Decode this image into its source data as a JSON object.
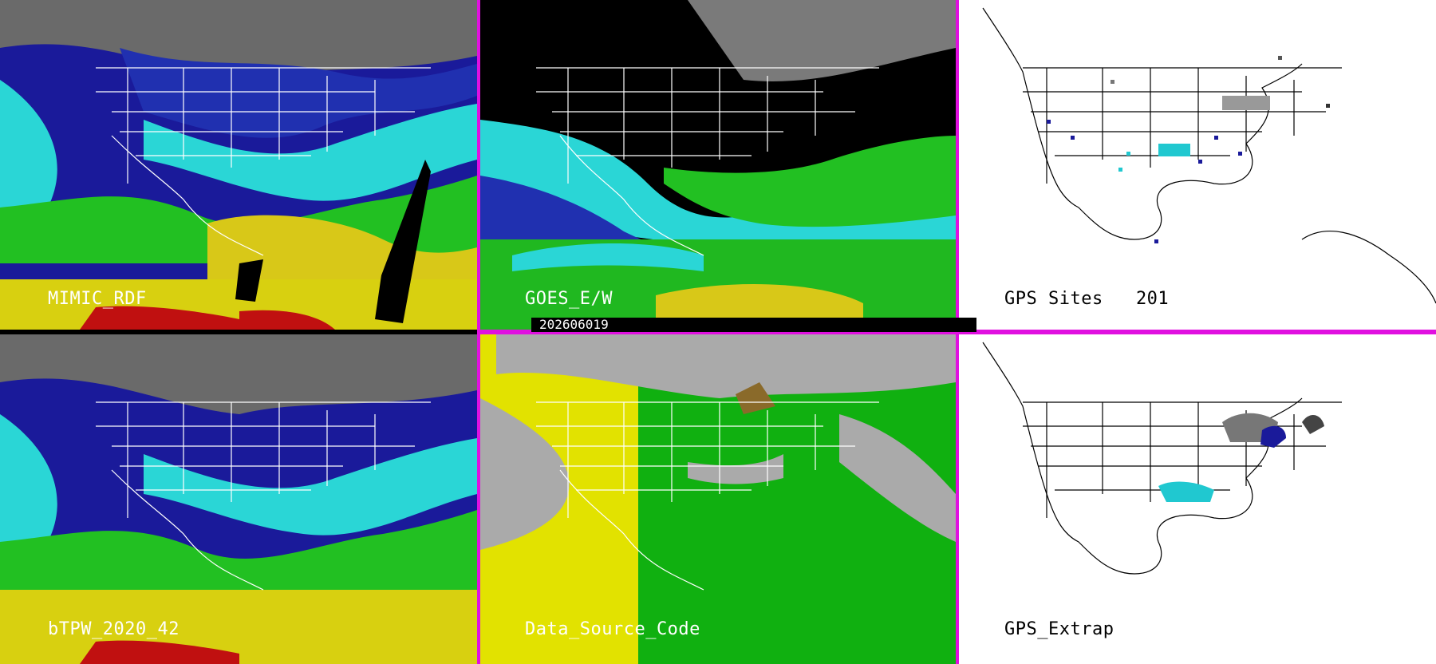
{
  "panels": [
    {
      "id": "p1",
      "label": "MIMIC_RDF"
    },
    {
      "id": "p2",
      "label": "GOES_E/W"
    },
    {
      "id": "p3",
      "label": "GPS Sites   201"
    },
    {
      "id": "p4",
      "label": "bTPW_2020_42"
    },
    {
      "id": "p5",
      "label": "Data_Source_Code"
    },
    {
      "id": "p6",
      "label": "GPS_Extrap"
    }
  ],
  "timestamp": "202606019",
  "colors": {
    "separator": "#e010e0",
    "very_low": "#c8c8c8",
    "low": "#1020a0",
    "mid": "#20d8e0",
    "high": "#20c020",
    "very_high": "#e0d010",
    "extreme": "#c01010",
    "source_yellow": "#e2e200",
    "source_green": "#10b010",
    "source_gray": "#aaaaaa"
  }
}
